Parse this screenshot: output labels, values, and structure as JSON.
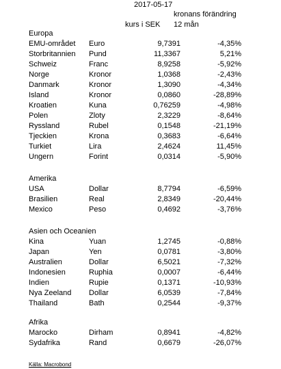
{
  "header": {
    "date": "2017-05-17",
    "col_rate": "kurs i SEK",
    "col_change_line1": "kronans förändring",
    "col_change_line2": "12 mån"
  },
  "regions": [
    {
      "name": "Europa",
      "rows": [
        {
          "country": "EMU-området",
          "currency": "Euro",
          "rate": "9,7391",
          "change": "-4,35%"
        },
        {
          "country": "Storbritannien",
          "currency": "Pund",
          "rate": "11,3367",
          "change": "5,21%"
        },
        {
          "country": "Schweiz",
          "currency": "Franc",
          "rate": "8,9258",
          "change": "-5,92%"
        },
        {
          "country": "Norge",
          "currency": "Kronor",
          "rate": "1,0368",
          "change": "-2,43%"
        },
        {
          "country": "Danmark",
          "currency": "Kronor",
          "rate": "1,3090",
          "change": "-4,34%"
        },
        {
          "country": "Island",
          "currency": "Kronor",
          "rate": "0,0860",
          "change": "-28,89%"
        },
        {
          "country": "Kroatien",
          "currency": "Kuna",
          "rate": "0,76259",
          "change": "-4,98%"
        },
        {
          "country": "Polen",
          "currency": "Zloty",
          "rate": "2,3229",
          "change": "-8,64%"
        },
        {
          "country": "Ryssland",
          "currency": "Rubel",
          "rate": "0,1548",
          "change": "-21,19%"
        },
        {
          "country": "Tjeckien",
          "currency": "Krona",
          "rate": "0,3683",
          "change": "-6,64%"
        },
        {
          "country": "Turkiet",
          "currency": "Lira",
          "rate": "2,4624",
          "change": "11,45%"
        },
        {
          "country": "Ungern",
          "currency": "Forint",
          "rate": "0,0314",
          "change": "-5,90%"
        }
      ]
    },
    {
      "name": "Amerika",
      "rows": [
        {
          "country": "USA",
          "currency": "Dollar",
          "rate": "8,7794",
          "change": "-6,59%"
        },
        {
          "country": "Brasilien",
          "currency": "Real",
          "rate": "2,8349",
          "change": "-20,44%"
        },
        {
          "country": "Mexico",
          "currency": "Peso",
          "rate": "0,4692",
          "change": "-3,76%"
        }
      ]
    },
    {
      "name": "Asien och Oceanien",
      "rows": [
        {
          "country": "Kina",
          "currency": "Yuan",
          "rate": "1,2745",
          "change": "-0,88%"
        },
        {
          "country": "Japan",
          "currency": "Yen",
          "rate": "0,0781",
          "change": "-3,80%"
        },
        {
          "country": "Australien",
          "currency": "Dollar",
          "rate": "6,5021",
          "change": "-7,32%"
        },
        {
          "country": "Indonesien",
          "currency": "Ruphia",
          "rate": "0,0007",
          "change": "-6,44%"
        },
        {
          "country": "Indien",
          "currency": "Rupie",
          "rate": "0,1371",
          "change": "-10,93%"
        },
        {
          "country": "Nya Zeeland",
          "currency": "Dollar",
          "rate": "6,0539",
          "change": "-7,84%"
        },
        {
          "country": "Thailand",
          "currency": "Bath",
          "rate": "0,2544",
          "change": "-9,37%"
        }
      ]
    },
    {
      "name": "Afrika",
      "rows": [
        {
          "country": "Marocko",
          "currency": "Dirham",
          "rate": "0,8941",
          "change": "-4,82%"
        },
        {
          "country": "Sydafrika",
          "currency": "Rand",
          "rate": "0,6679",
          "change": "-26,07%"
        }
      ]
    }
  ],
  "source": "Källa: Macrobond"
}
